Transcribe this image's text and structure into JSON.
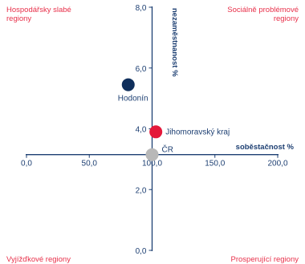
{
  "chart_data": {
    "type": "scatter",
    "xlim": [
      0,
      200
    ],
    "ylim": [
      0,
      8
    ],
    "x_ticks": [
      "0,0",
      "50,0",
      "100,0",
      "150,0",
      "200,0"
    ],
    "y_ticks": [
      "0,0",
      "2,0",
      "4,0",
      "6,0",
      "8,0"
    ],
    "x_tick_values": [
      0,
      50,
      100,
      150,
      200
    ],
    "y_tick_values": [
      0,
      2,
      4,
      6,
      8
    ],
    "x_crosses_y_at": 3.15,
    "y_crosses_x_at": 100,
    "xlabel": "soběstačnost %",
    "ylabel": "nezaměstnanost %",
    "quadrant_labels": {
      "top_left": [
        "Hospodářsky slabé",
        "regiony"
      ],
      "top_right": [
        "Sociálně problémové",
        "regiony"
      ],
      "bottom_left": "Vyjížďkové regiony",
      "bottom_right": "Prosperující regiony"
    },
    "points": [
      {
        "label": "Hodonín",
        "x": 81,
        "y": 5.45,
        "color": "#0f2f5c",
        "label_pos": "below"
      },
      {
        "label": "Jihomoravský kraj",
        "x": 103,
        "y": 3.9,
        "color": "#e4183a",
        "label_pos": "right"
      },
      {
        "label": "ČR",
        "x": 100,
        "y": 3.15,
        "color": "#b8b8b8",
        "label_pos": "upper-right"
      }
    ],
    "colors": {
      "axis": "#1d3f72",
      "quadrant_text": "#e8304a"
    }
  }
}
